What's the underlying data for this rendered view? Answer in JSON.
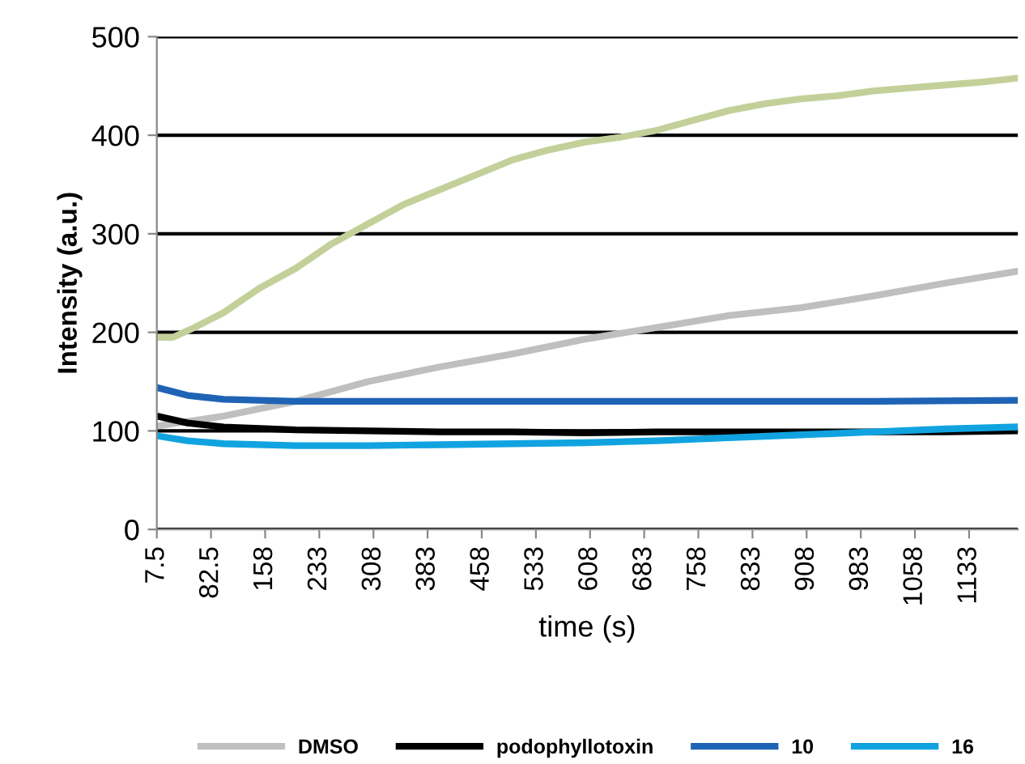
{
  "chart_data": {
    "type": "line",
    "xlabel": "time (s)",
    "ylabel": "Intensity (a.u.)",
    "xlim": [
      7.5,
      1200
    ],
    "ylim": [
      0,
      500
    ],
    "yticks": [
      0,
      100,
      200,
      300,
      400,
      500
    ],
    "xticks": [
      7.5,
      82.5,
      {
        "value": 157.5,
        "label": "158"
      },
      {
        "value": 232.5,
        "label": "233"
      },
      {
        "value": 307.5,
        "label": "308"
      },
      {
        "value": 382.5,
        "label": "383"
      },
      {
        "value": 457.5,
        "label": "458"
      },
      {
        "value": 532.5,
        "label": "533"
      },
      {
        "value": 607.5,
        "label": "608"
      },
      {
        "value": 682.5,
        "label": "683"
      },
      {
        "value": 757.5,
        "label": "758"
      },
      {
        "value": 832.5,
        "label": "833"
      },
      {
        "value": 907.5,
        "label": "908"
      },
      {
        "value": 982.5,
        "label": "983"
      },
      {
        "value": 1057.5,
        "label": "1058"
      },
      {
        "value": 1132.5,
        "label": "1133"
      }
    ],
    "grid": "y",
    "legend": "bottom",
    "marker": "none",
    "line_style": "solid",
    "series": [
      {
        "name": "DMSO",
        "color": "#bfbfbf",
        "x": [
          7.5,
          100,
          200,
          300,
          400,
          500,
          600,
          700,
          800,
          900,
          1000,
          1100,
          1200
        ],
        "values": [
          105,
          115,
          130,
          150,
          165,
          178,
          193,
          205,
          217,
          225,
          237,
          250,
          262
        ]
      },
      {
        "color": "#c4d09a",
        "x": [
          7.5,
          30,
          60,
          100,
          150,
          200,
          250,
          300,
          350,
          400,
          450,
          500,
          550,
          600,
          650,
          700,
          750,
          800,
          850,
          900,
          950,
          1000,
          1050,
          1100,
          1150,
          1200
        ],
        "values": [
          195,
          195,
          205,
          220,
          245,
          265,
          290,
          310,
          330,
          345,
          360,
          375,
          385,
          393,
          398,
          405,
          415,
          425,
          432,
          437,
          440,
          445,
          448,
          451,
          454,
          458
        ]
      },
      {
        "name": "podophyllotoxin",
        "color": "#000000",
        "x": [
          7.5,
          50,
          100,
          200,
          300,
          400,
          500,
          600,
          700,
          800,
          900,
          1000,
          1100,
          1200
        ],
        "values": [
          115,
          108,
          104,
          101,
          100,
          99,
          99,
          98,
          99,
          99,
          99,
          99,
          99,
          100
        ]
      },
      {
        "name": "10",
        "color": "#1f63b5",
        "x": [
          7.5,
          50,
          100,
          200,
          300,
          400,
          600,
          800,
          1000,
          1200
        ],
        "values": [
          144,
          136,
          132,
          130,
          130,
          130,
          130,
          130,
          130,
          131
        ]
      },
      {
        "name": "16",
        "color": "#11a3e0",
        "x": [
          7.5,
          50,
          100,
          200,
          300,
          400,
          500,
          600,
          700,
          800,
          900,
          1000,
          1100,
          1200
        ],
        "values": [
          95,
          90,
          87,
          85,
          85,
          86,
          87,
          88,
          90,
          93,
          96,
          99,
          102,
          104
        ]
      }
    ]
  }
}
